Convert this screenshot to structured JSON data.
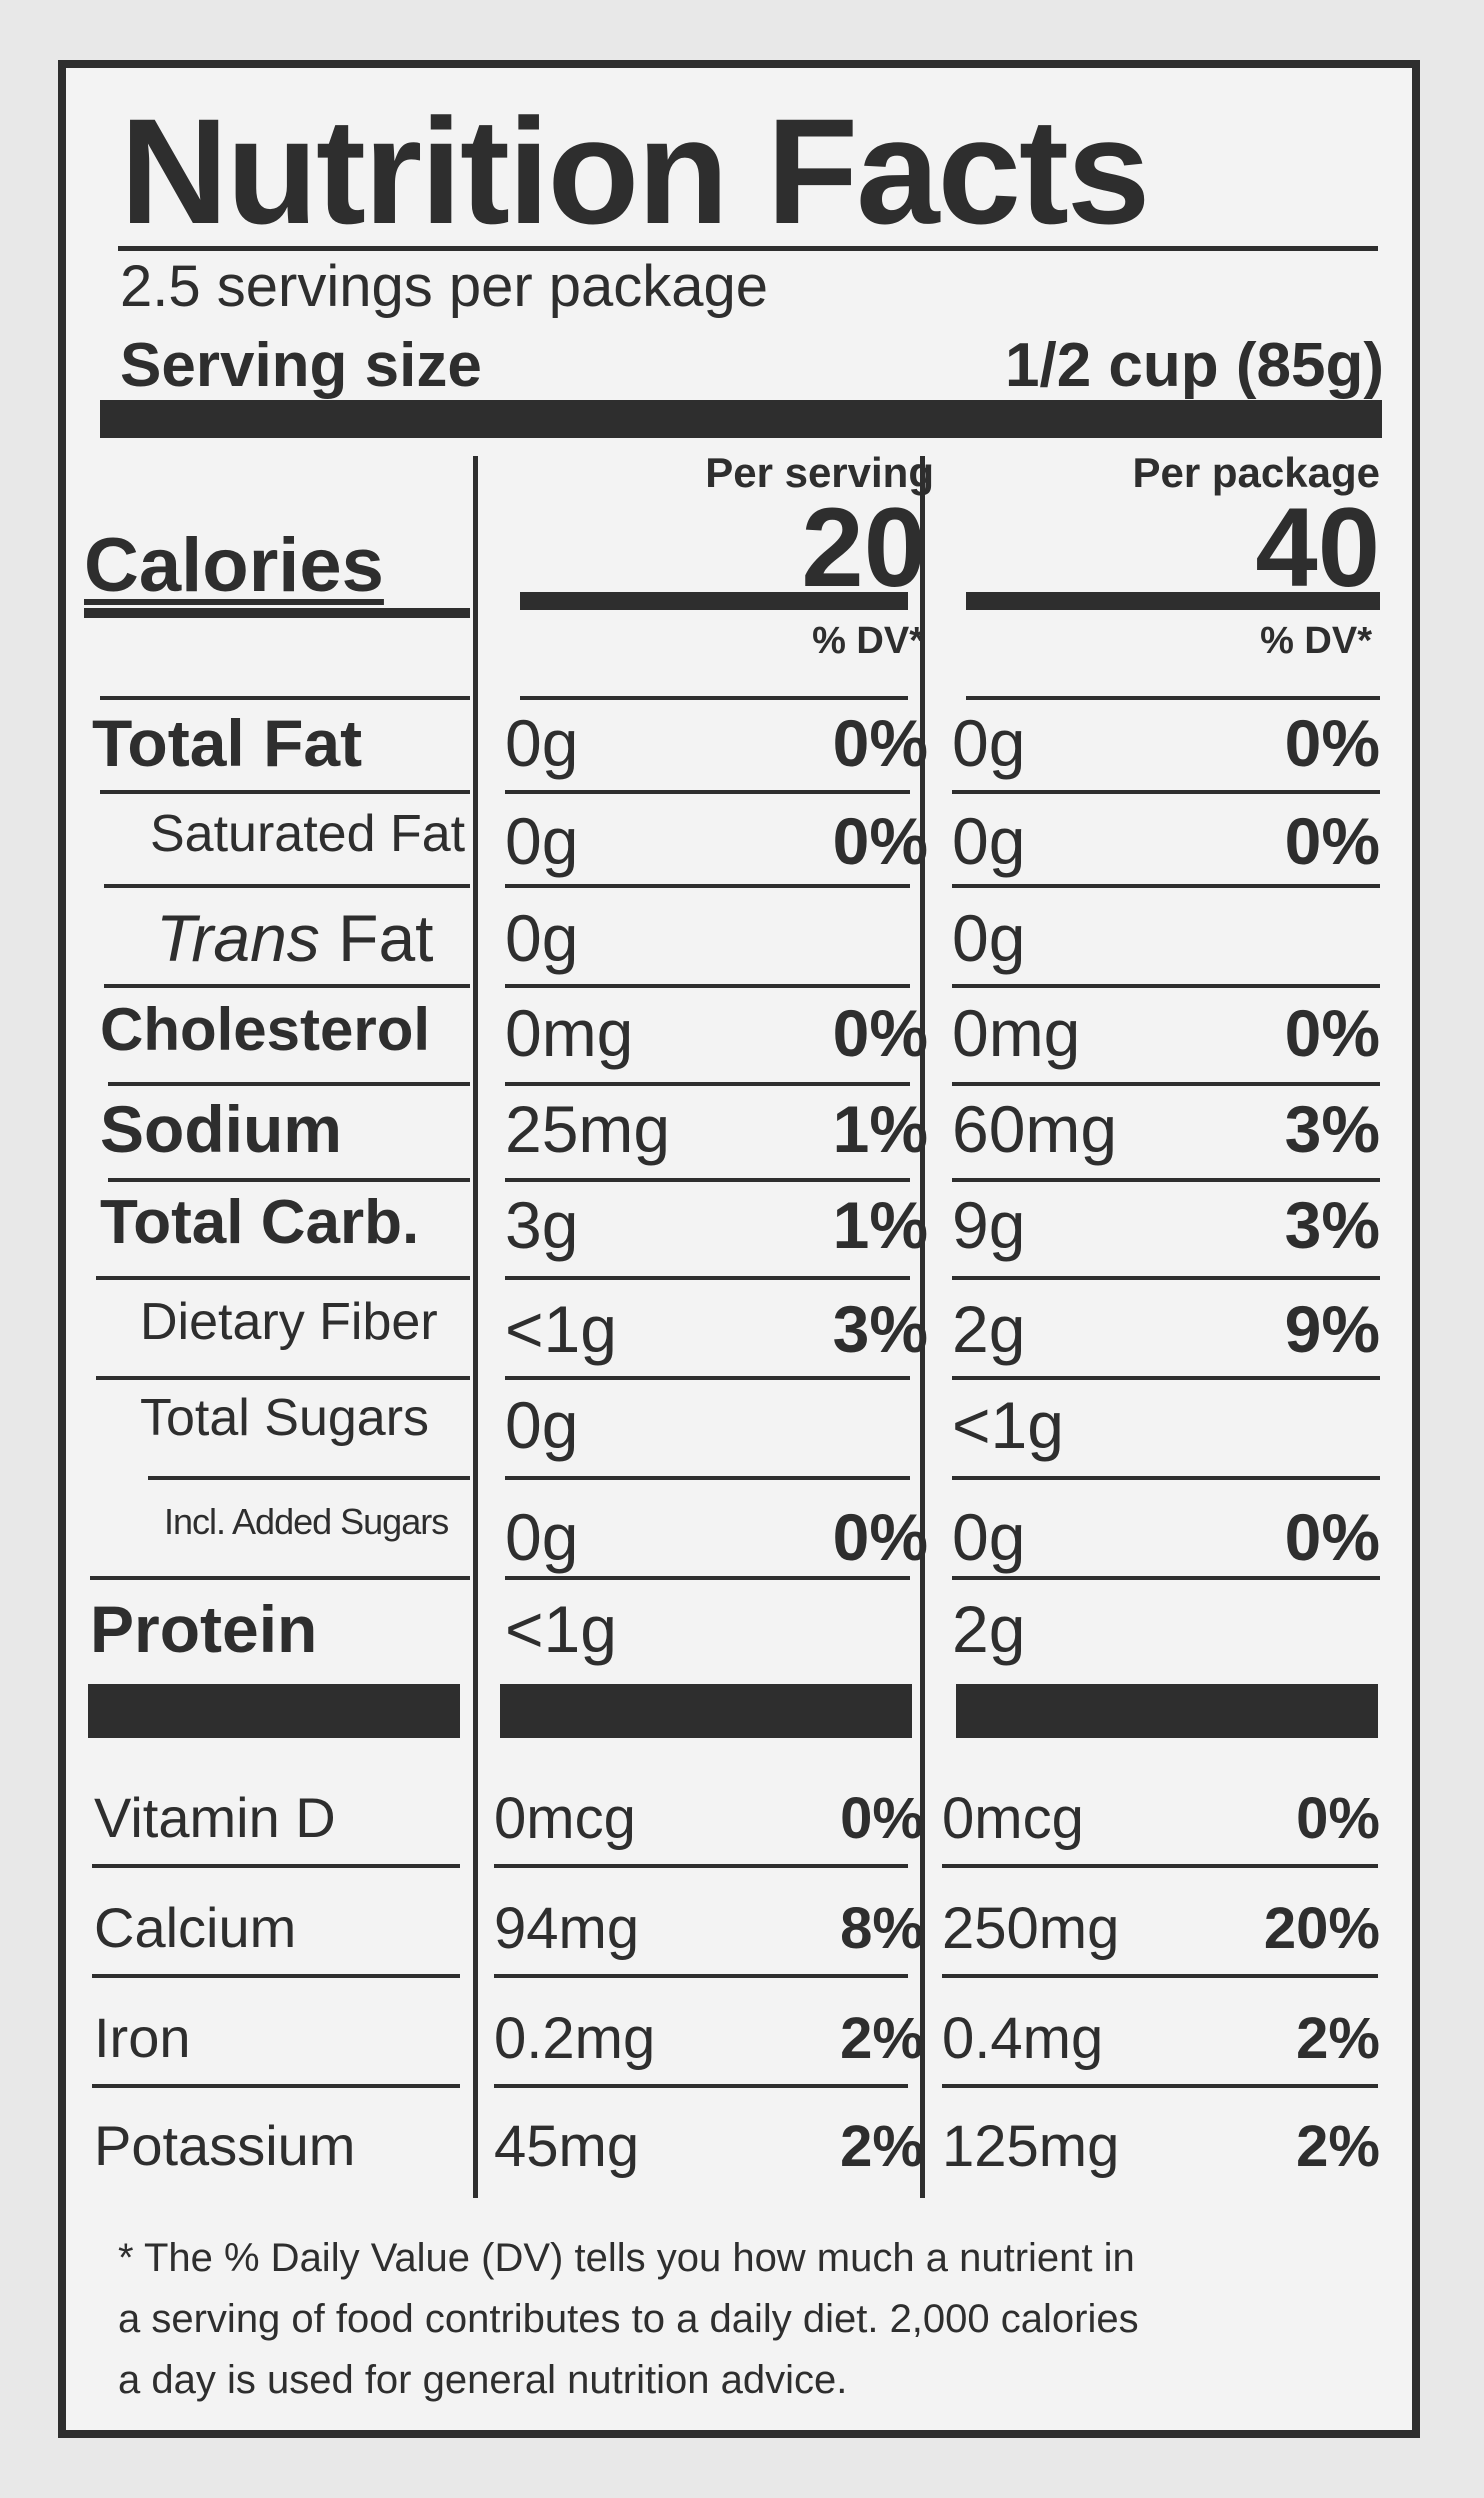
{
  "label": {
    "title": "Nutrition Facts",
    "servings_per_package": "2.5 servings per package",
    "serving_size_label": "Serving size",
    "serving_size_value": "1/2 cup (85g)",
    "calories_label": "Calories",
    "per_serving_header": "Per serving",
    "per_package_header": "Per package",
    "calories_per_serving": "20",
    "calories_per_package": "40",
    "dv_header": "% DV*"
  },
  "nutrients": [
    {
      "label": "Total Fat",
      "serving_amount": "0g",
      "serving_dv": "0%",
      "package_amount": "0g",
      "package_dv": "0%"
    },
    {
      "label": "Saturated Fat",
      "serving_amount": "0g",
      "serving_dv": "0%",
      "package_amount": "0g",
      "package_dv": "0%"
    },
    {
      "label_italic": "Trans",
      "label_rest": " Fat",
      "serving_amount": "0g",
      "serving_dv": "",
      "package_amount": "0g",
      "package_dv": ""
    },
    {
      "label": "Cholesterol",
      "serving_amount": "0mg",
      "serving_dv": "0%",
      "package_amount": "0mg",
      "package_dv": "0%"
    },
    {
      "label": "Sodium",
      "serving_amount": "25mg",
      "serving_dv": "1%",
      "package_amount": "60mg",
      "package_dv": "3%"
    },
    {
      "label": "Total Carb.",
      "serving_amount": "3g",
      "serving_dv": "1%",
      "package_amount": "9g",
      "package_dv": "3%"
    },
    {
      "label": "Dietary Fiber",
      "serving_amount": "<1g",
      "serving_dv": "3%",
      "package_amount": "2g",
      "package_dv": "9%"
    },
    {
      "label": "Total Sugars",
      "serving_amount": "0g",
      "serving_dv": "",
      "package_amount": "<1g",
      "package_dv": ""
    },
    {
      "label": "Incl. Added Sugars",
      "serving_amount": "0g",
      "serving_dv": "0%",
      "package_amount": "0g",
      "package_dv": "0%"
    },
    {
      "label": "Protein",
      "serving_amount": "<1g",
      "serving_dv": "",
      "package_amount": "2g",
      "package_dv": ""
    }
  ],
  "vitamins": [
    {
      "label": "Vitamin D",
      "serving_amount": "0mcg",
      "serving_dv": "0%",
      "package_amount": "0mcg",
      "package_dv": "0%"
    },
    {
      "label": "Calcium",
      "serving_amount": "94mg",
      "serving_dv": "8%",
      "package_amount": "250mg",
      "package_dv": "20%"
    },
    {
      "label": "Iron",
      "serving_amount": "0.2mg",
      "serving_dv": "2%",
      "package_amount": "0.4mg",
      "package_dv": "2%"
    },
    {
      "label": "Potassium",
      "serving_amount": "45mg",
      "serving_dv": "2%",
      "package_amount": "125mg",
      "package_dv": "2%"
    }
  ],
  "footnote": {
    "line1": "* The % Daily Value (DV) tells you how much a nutrient in",
    "line2": "a serving of food contributes to a daily diet. 2,000 calories",
    "line3": "a day is used for general nutrition advice."
  },
  "colors": {
    "ink": "#2e2e2e",
    "panel": "#f3f3f3",
    "background": "#e8e8e8"
  }
}
